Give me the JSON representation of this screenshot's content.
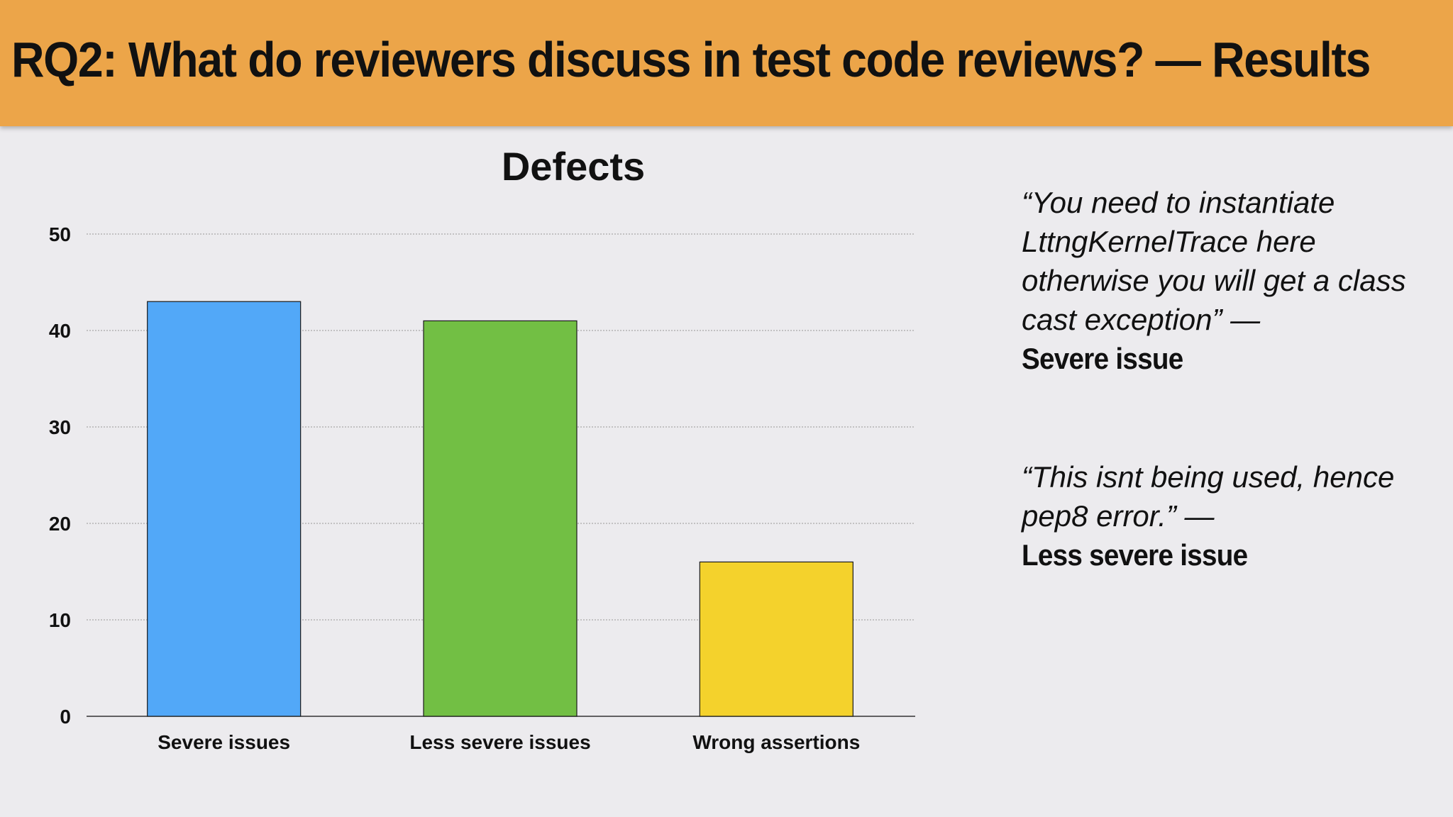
{
  "slide": {
    "title": "RQ2: What do reviewers discuss in test code reviews? — Results"
  },
  "quotes": [
    {
      "text": "“You need to instantiate LttngKernelTrace here otherwise you will get a class cast exception” —",
      "label": "Severe issue"
    },
    {
      "text": "“This isnt being used, hence pep8 error.” —",
      "label": "Less severe issue"
    }
  ],
  "chart_data": {
    "type": "bar",
    "title": "Defects",
    "categories": [
      "Severe issues",
      "Less severe issues",
      "Wrong assertions"
    ],
    "values": [
      43,
      41,
      16
    ],
    "colors": [
      "#52a8f8",
      "#72bf44",
      "#f4d22c"
    ],
    "xlabel": "",
    "ylabel": "",
    "ylim": [
      0,
      50
    ],
    "yticks": [
      0,
      10,
      20,
      30,
      40,
      50
    ],
    "grid": true,
    "legend": "none"
  }
}
